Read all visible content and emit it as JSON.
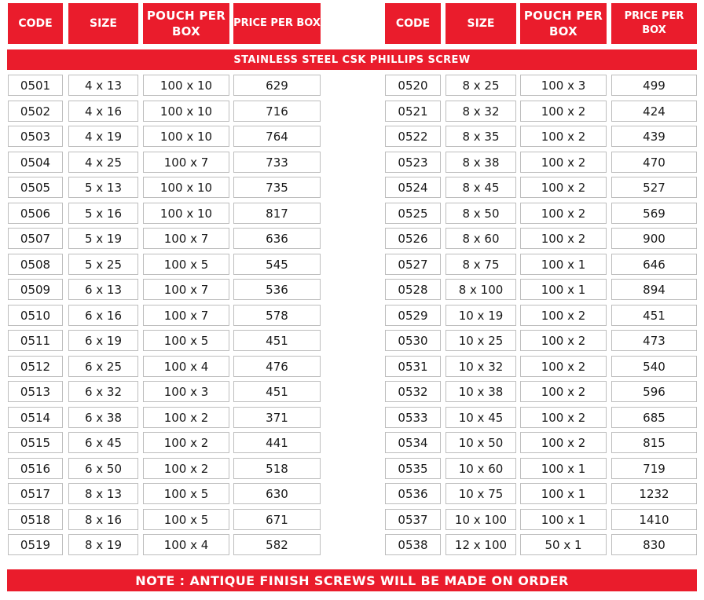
{
  "headers": {
    "left": [
      "CODE",
      "SIZE",
      "POUCH PER BOX",
      "PRICE PER BOX"
    ],
    "right": [
      "CODE",
      "SIZE",
      "POUCH PER BOX",
      "PRICE PER BOX"
    ]
  },
  "title": "STAINLESS STEEL CSK PHILLIPS SCREW",
  "left_rows": [
    [
      "0501",
      "4 x 13",
      "100 x 10",
      "629"
    ],
    [
      "0502",
      "4 x 16",
      "100 x 10",
      "716"
    ],
    [
      "0503",
      "4 x 19",
      "100 x 10",
      "764"
    ],
    [
      "0504",
      "4 x 25",
      "100 x 7",
      "733"
    ],
    [
      "0505",
      "5 x 13",
      "100 x 10",
      "735"
    ],
    [
      "0506",
      "5 x 16",
      "100 x 10",
      "817"
    ],
    [
      "0507",
      "5 x 19",
      "100 x 7",
      "636"
    ],
    [
      "0508",
      "5 x 25",
      "100 x 5",
      "545"
    ],
    [
      "0509",
      "6 x 13",
      "100 x 7",
      "536"
    ],
    [
      "0510",
      "6 x 16",
      "100 x 7",
      "578"
    ],
    [
      "0511",
      "6 x 19",
      "100 x 5",
      "451"
    ],
    [
      "0512",
      "6 x 25",
      "100 x 4",
      "476"
    ],
    [
      "0513",
      "6 x 32",
      "100 x 3",
      "451"
    ],
    [
      "0514",
      "6 x 38",
      "100 x 2",
      "371"
    ],
    [
      "0515",
      "6 x 45",
      "100 x 2",
      "441"
    ],
    [
      "0516",
      "6 x 50",
      "100 x 2",
      "518"
    ],
    [
      "0517",
      "8 x 13",
      "100 x 5",
      "630"
    ],
    [
      "0518",
      "8 x 16",
      "100 x 5",
      "671"
    ],
    [
      "0519",
      "8 x 19",
      "100 x 4",
      "582"
    ]
  ],
  "right_rows": [
    [
      "0520",
      "8 x 25",
      "100 x 3",
      "499"
    ],
    [
      "0521",
      "8 x 32",
      "100 x 2",
      "424"
    ],
    [
      "0522",
      "8 x 35",
      "100 x 2",
      "439"
    ],
    [
      "0523",
      "8 x 38",
      "100 x 2",
      "470"
    ],
    [
      "0524",
      "8 x 45",
      "100 x 2",
      "527"
    ],
    [
      "0525",
      "8 x 50",
      "100 x 2",
      "569"
    ],
    [
      "0526",
      "8 x 60",
      "100 x 2",
      "900"
    ],
    [
      "0527",
      "8 x 75",
      "100 x 1",
      "646"
    ],
    [
      "0528",
      "8 x 100",
      "100 x 1",
      "894"
    ],
    [
      "0529",
      "10 x 19",
      "100 x 2",
      "451"
    ],
    [
      "0530",
      "10 x 25",
      "100 x 2",
      "473"
    ],
    [
      "0531",
      "10 x 32",
      "100 x 2",
      "540"
    ],
    [
      "0532",
      "10 x 38",
      "100 x 2",
      "596"
    ],
    [
      "0533",
      "10 x 45",
      "100 x 2",
      "685"
    ],
    [
      "0534",
      "10 x 50",
      "100 x 2",
      "815"
    ],
    [
      "0535",
      "10 x 60",
      "100 x 1",
      "719"
    ],
    [
      "0536",
      "10 x 75",
      "100 x 1",
      "1232"
    ],
    [
      "0537",
      "10 x 100",
      "100 x 1",
      "1410"
    ],
    [
      "0538",
      "12 x 100",
      "50 x 1",
      "830"
    ]
  ],
  "note": "NOTE : ANTIQUE FINISH SCREWS WILL BE MADE ON ORDER",
  "colors": {
    "accent": "#ea1c2c",
    "cell_border": "#bdbdbd"
  }
}
